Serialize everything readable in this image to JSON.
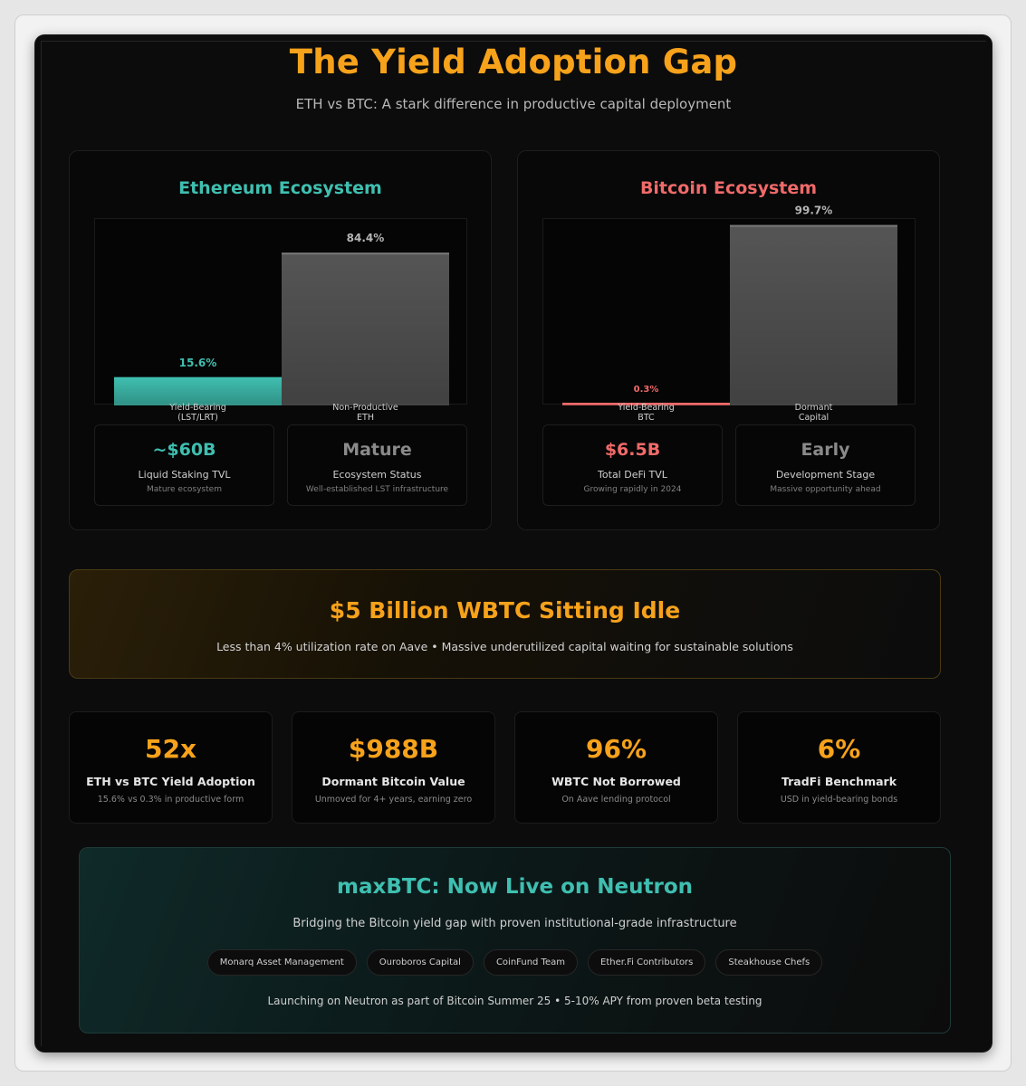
{
  "header": {
    "title": "The Yield Adoption Gap",
    "subtitle": "ETH vs BTC: A stark difference in productive capital deployment"
  },
  "colors": {
    "accent_orange": "#f7a21b",
    "eth_teal": "#3fbfb0",
    "btc_red": "#f06a6a",
    "bar_gray": "#555555"
  },
  "eth": {
    "title": "Ethereum Ecosystem",
    "stats": [
      {
        "value": "~$60B",
        "label": "Liquid Staking TVL",
        "sub": "Mature ecosystem"
      },
      {
        "value": "Mature",
        "label": "Ecosystem Status",
        "sub": "Well-established LST infrastructure"
      }
    ]
  },
  "btc": {
    "title": "Bitcoin Ecosystem",
    "stats": [
      {
        "value": "$6.5B",
        "label": "Total DeFi TVL",
        "sub": "Growing rapidly in 2024"
      },
      {
        "value": "Early",
        "label": "Development Stage",
        "sub": "Massive opportunity ahead"
      }
    ]
  },
  "chart_data": [
    {
      "type": "bar",
      "title": "Ethereum Ecosystem",
      "categories": [
        "Yield-Bearing (LST/LRT)",
        "Non-Productive ETH"
      ],
      "category_lines": [
        [
          "Yield-Bearing",
          "(LST/LRT)"
        ],
        [
          "Non-Productive",
          "ETH"
        ]
      ],
      "values": [
        15.6,
        84.4
      ],
      "value_labels": [
        "15.6%",
        "84.4%"
      ],
      "colors": [
        "#3fbfb0",
        "#555555"
      ],
      "ylim": [
        0,
        100
      ],
      "grid": false
    },
    {
      "type": "bar",
      "title": "Bitcoin Ecosystem",
      "categories": [
        "Yield-Bearing BTC",
        "Dormant Capital"
      ],
      "category_lines": [
        [
          "Yield-Bearing",
          "BTC"
        ],
        [
          "Dormant",
          "Capital"
        ]
      ],
      "values": [
        0.3,
        99.7
      ],
      "value_labels": [
        "0.3%",
        "99.7%"
      ],
      "colors": [
        "#f06a6a",
        "#555555"
      ],
      "ylim": [
        0,
        100
      ],
      "grid": false
    }
  ],
  "idle": {
    "title": "$5 Billion WBTC Sitting Idle",
    "subtitle": "Less than 4% utilization rate on Aave • Massive underutilized capital waiting for sustainable solutions"
  },
  "metrics": [
    {
      "value": "52x",
      "label": "ETH vs BTC Yield Adoption",
      "sub": "15.6% vs 0.3% in productive form"
    },
    {
      "value": "$988B",
      "label": "Dormant Bitcoin Value",
      "sub": "Unmoved for 4+ years, earning zero"
    },
    {
      "value": "96%",
      "label": "WBTC Not Borrowed",
      "sub": "On Aave lending protocol"
    },
    {
      "value": "6%",
      "label": "TradFi Benchmark",
      "sub": "USD in yield-bearing bonds"
    }
  ],
  "maxbtc": {
    "title": "maxBTC: Now Live on Neutron",
    "subtitle": "Bridging the Bitcoin yield gap with proven institutional-grade infrastructure",
    "partners": [
      "Monarq Asset Management",
      "Ouroboros Capital",
      "CoinFund Team",
      "Ether.Fi Contributors",
      "Steakhouse Chefs"
    ],
    "footer": "Launching on Neutron as part of Bitcoin Summer 25 • 5-10% APY from proven beta testing"
  }
}
